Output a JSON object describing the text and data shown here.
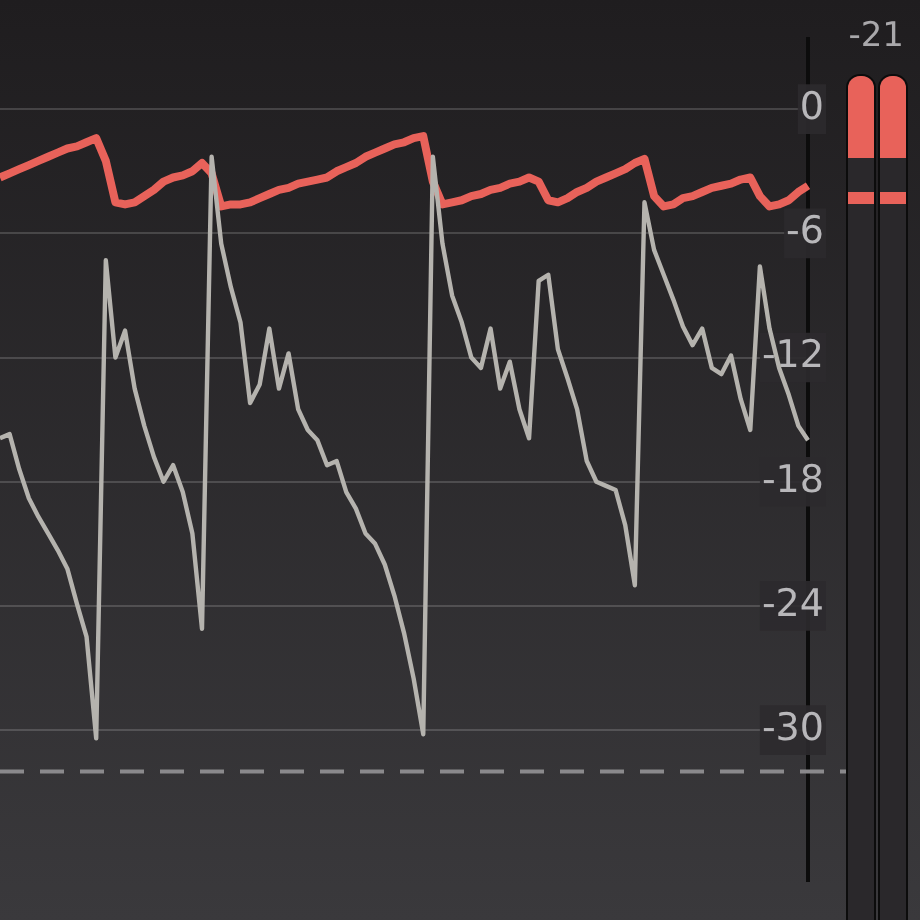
{
  "chart_data": {
    "type": "line",
    "categories": [
      null,
      null,
      null,
      null,
      null,
      null,
      null,
      null,
      null,
      null,
      null,
      null,
      null,
      null,
      null,
      null,
      null,
      null,
      null,
      null,
      null,
      null,
      null,
      null,
      null,
      null,
      null,
      null,
      null,
      null,
      null,
      null,
      null,
      null,
      null,
      null,
      null,
      null,
      null,
      null,
      null,
      null,
      null,
      null,
      null,
      null,
      null,
      null,
      null,
      null,
      null,
      null,
      null,
      null,
      null,
      null,
      null,
      null,
      null,
      null,
      null,
      null,
      null,
      null,
      null,
      null,
      null,
      null,
      null,
      null,
      null,
      null,
      null,
      null,
      null,
      null,
      null,
      null,
      null,
      null,
      null,
      null,
      null,
      null,
      null
    ],
    "series": [
      {
        "color": "#b5b3ae",
        "values": [
          -15.9,
          -15.7,
          -17.4,
          -18.8,
          -19.7,
          -20.5,
          -21.3,
          -22.2,
          -23.9,
          -25.5,
          -30.4,
          -7.3,
          -12.0,
          -10.7,
          -13.5,
          -15.3,
          -16.8,
          -18.0,
          -17.2,
          -18.5,
          -20.5,
          -25.1,
          -2.3,
          -6.5,
          -8.6,
          -10.3,
          -14.2,
          -13.3,
          -10.6,
          -13.5,
          -11.8,
          -14.5,
          -15.5,
          -16.0,
          -17.2,
          -17.0,
          -18.5,
          -19.3,
          -20.5,
          -21.0,
          -22.0,
          -23.5,
          -25.3,
          -27.5,
          -30.2,
          -2.3,
          -6.5,
          -9.0,
          -10.3,
          -12.0,
          -12.5,
          -10.6,
          -13.5,
          -12.2,
          -14.5,
          -15.9,
          -8.3,
          -8.0,
          -11.6,
          -13.0,
          -14.5,
          -17.0,
          -18.0,
          -18.2,
          -18.4,
          -20.1,
          -23.0,
          -4.5,
          -6.8,
          -8.0,
          -9.2,
          -10.5,
          -11.4,
          -10.6,
          -12.5,
          -12.8,
          -11.9,
          -14.0,
          -15.5,
          -7.6,
          -10.6,
          -12.5,
          -13.8,
          -15.3,
          -16.0
        ]
      },
      {
        "color": "#e8625a",
        "values": [
          -3.3,
          -3.1,
          -2.9,
          -2.7,
          -2.5,
          -2.3,
          -2.1,
          -1.9,
          -1.8,
          -1.6,
          -1.4,
          -2.5,
          -4.5,
          -4.6,
          -4.5,
          -4.2,
          -3.9,
          -3.5,
          -3.3,
          -3.2,
          -3.0,
          -2.6,
          -3.1,
          -4.7,
          -4.6,
          -4.6,
          -4.5,
          -4.3,
          -4.1,
          -3.9,
          -3.8,
          -3.6,
          -3.5,
          -3.4,
          -3.3,
          -3.0,
          -2.8,
          -2.6,
          -2.3,
          -2.1,
          -1.9,
          -1.7,
          -1.6,
          -1.4,
          -1.3,
          -3.5,
          -4.6,
          -4.5,
          -4.4,
          -4.2,
          -4.1,
          -3.9,
          -3.8,
          -3.6,
          -3.5,
          -3.3,
          -3.5,
          -4.4,
          -4.5,
          -4.3,
          -4.0,
          -3.8,
          -3.5,
          -3.3,
          -3.1,
          -2.9,
          -2.6,
          -2.4,
          -4.2,
          -4.7,
          -4.6,
          -4.3,
          -4.2,
          -4.0,
          -3.8,
          -3.7,
          -3.6,
          -3.4,
          -3.3,
          -4.2,
          -4.7,
          -4.6,
          -4.4,
          -4.0,
          -3.7
        ]
      }
    ],
    "ylim": [
      -37.3,
      3.4
    ],
    "yticks": [
      0,
      -6,
      -12,
      -18,
      -24,
      -30
    ],
    "grid": "y",
    "legend": false,
    "tick_labels": "y",
    "marker": "none",
    "ref_lines": [
      {
        "axis": "y",
        "value": -32,
        "color": "#8a898c",
        "line_style": "dashed"
      }
    ],
    "annotations": [
      "-21"
    ]
  }
}
